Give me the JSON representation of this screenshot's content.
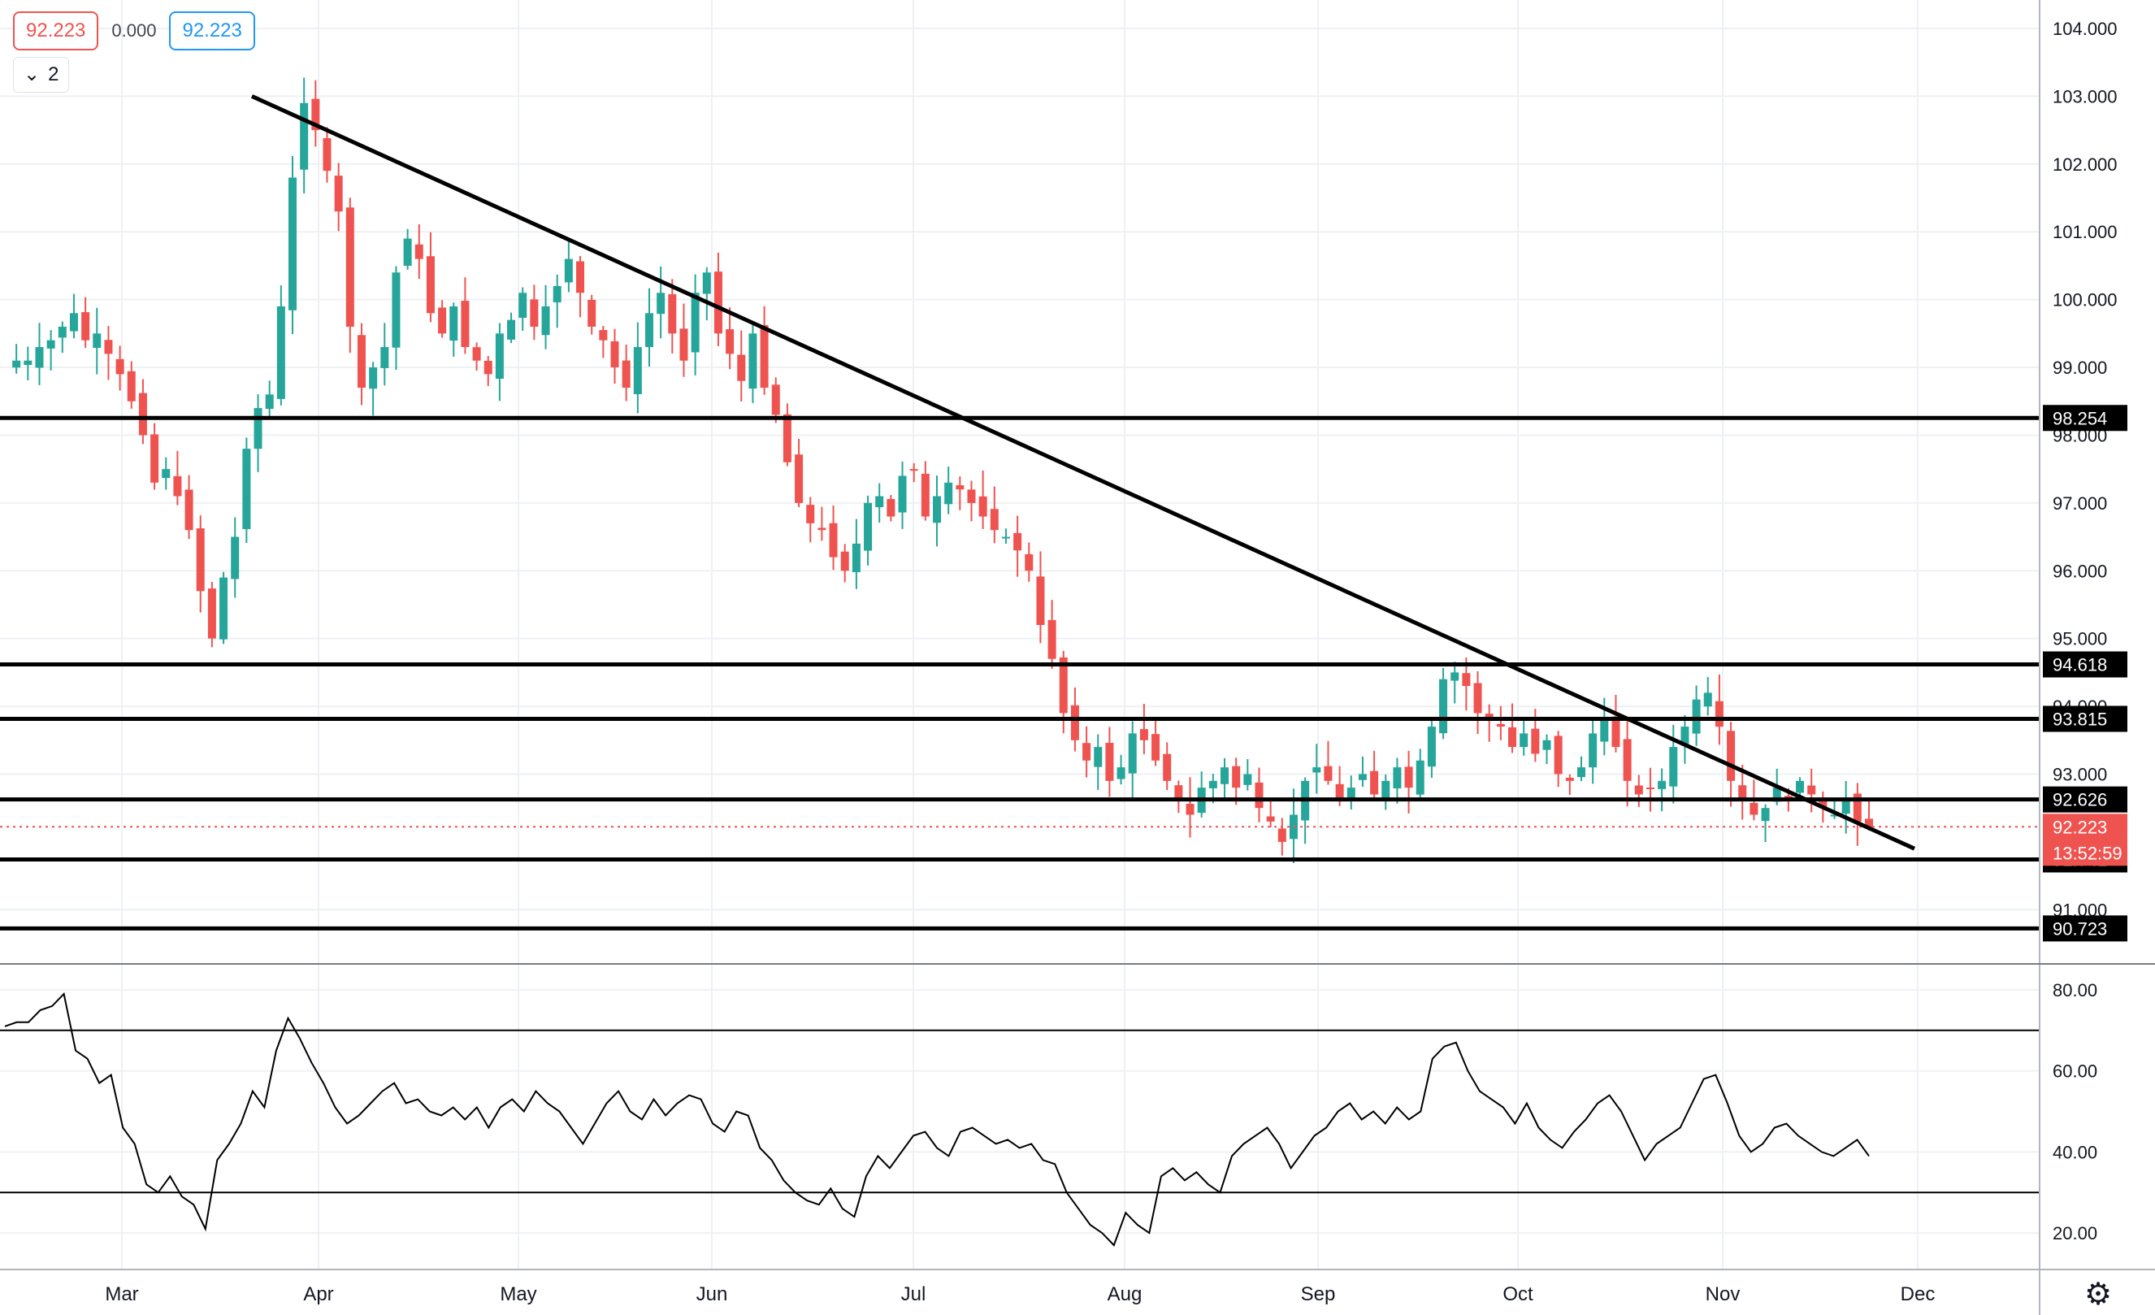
{
  "hud": {
    "open": "92.223",
    "change": "0.000",
    "close": "92.223",
    "collapse_count": "2",
    "collapse_icon": "chevron-down-icon"
  },
  "colors": {
    "up": "#26a69a",
    "down": "#ef5350",
    "line": "#000000",
    "grid": "#eef0f3",
    "price_marker": "#ef5350"
  },
  "chart_data": [
    {
      "type": "candlestick",
      "title": "",
      "x_labels": [
        "Mar",
        "Apr",
        "May",
        "Jun",
        "Jul",
        "Aug",
        "Sep",
        "Oct",
        "Nov",
        "Dec"
      ],
      "y_ticks": [
        "91.000",
        "93.000",
        "94.000",
        "95.000",
        "96.000",
        "97.000",
        "98.000",
        "99.000",
        "100.000",
        "101.000",
        "102.000",
        "103.000",
        "104.000"
      ],
      "ylim": [
        90.2,
        104.3
      ],
      "grid": true,
      "close_path": [
        99.0,
        99.1,
        99.1,
        99.3,
        99.4,
        99.6,
        99.8,
        99.4,
        99.5,
        99.2,
        98.9,
        98.5,
        98.0,
        97.3,
        97.5,
        97.1,
        96.6,
        95.7,
        95.0,
        95.9,
        96.5,
        97.8,
        98.4,
        98.6,
        99.9,
        101.8,
        102.9,
        102.5,
        101.9,
        101.3,
        99.6,
        98.7,
        99.0,
        99.3,
        100.4,
        100.9,
        100.6,
        99.8,
        99.5,
        99.9,
        99.3,
        99.1,
        98.9,
        99.5,
        99.7,
        100.1,
        99.6,
        99.9,
        100.2,
        100.6,
        100.1,
        99.6,
        99.4,
        99.0,
        98.7,
        99.3,
        99.8,
        100.1,
        99.5,
        99.1,
        100.1,
        100.4,
        99.5,
        99.2,
        98.8,
        99.5,
        98.7,
        98.3,
        97.6,
        97.0,
        96.7,
        96.6,
        96.2,
        96.0,
        96.4,
        97.0,
        97.1,
        96.8,
        97.4,
        97.5,
        96.8,
        97.1,
        97.3,
        97.2,
        97.0,
        96.8,
        96.6,
        96.5,
        96.3,
        96.0,
        95.2,
        94.7,
        93.9,
        93.5,
        93.2,
        93.4,
        92.9,
        93.1,
        93.6,
        93.5,
        93.2,
        92.9,
        92.6,
        92.4,
        92.8,
        92.9,
        93.1,
        92.8,
        93.0,
        92.5,
        92.3,
        92.0,
        92.4,
        92.9,
        93.1,
        92.9,
        92.6,
        92.8,
        93.0,
        92.7,
        92.9,
        93.1,
        92.8,
        93.2,
        93.7,
        94.4,
        94.5,
        94.3,
        93.9,
        93.8,
        93.7,
        93.4,
        93.6,
        93.3,
        93.5,
        93.0,
        92.9,
        93.1,
        93.6,
        93.8,
        93.4,
        92.9,
        92.7,
        92.8,
        92.9,
        93.4,
        93.7,
        94.1,
        94.2,
        93.7,
        92.9,
        92.6,
        92.4,
        92.5,
        92.8,
        92.6,
        92.9,
        92.7,
        92.5,
        92.4,
        92.6,
        92.3,
        92.223
      ],
      "horizontal_levels": [
        "98.254",
        "94.618",
        "93.815",
        "92.626",
        "91.741",
        "90.723"
      ],
      "last_price": "92.223",
      "countdown": "13:52:59",
      "trendline": {
        "from": {
          "x": "Mar 20",
          "y": 103.0
        },
        "to": {
          "x": "Nov 22",
          "y": 91.9
        }
      }
    },
    {
      "type": "line",
      "title": "",
      "y_ticks": [
        "20.00",
        "40.00",
        "60.00",
        "80.00"
      ],
      "ylim": [
        11,
        86
      ],
      "bands": [
        30,
        70
      ],
      "values": [
        71,
        72,
        72,
        75,
        76,
        79,
        65,
        63,
        57,
        59,
        46,
        42,
        32,
        30,
        34,
        29,
        27,
        21,
        38,
        42,
        47,
        55,
        51,
        65,
        73,
        68,
        62,
        57,
        51,
        47,
        49,
        52,
        55,
        57,
        52,
        53,
        50,
        49,
        51,
        48,
        51,
        46,
        51,
        53,
        50,
        55,
        52,
        50,
        46,
        42,
        47,
        52,
        55,
        50,
        48,
        53,
        49,
        52,
        54,
        53,
        47,
        45,
        50,
        49,
        41,
        38,
        33,
        30,
        28,
        27,
        31,
        26,
        24,
        34,
        39,
        36,
        40,
        44,
        45,
        41,
        39,
        45,
        46,
        44,
        42,
        43,
        41,
        42,
        38,
        37,
        30,
        26,
        22,
        20,
        17,
        25,
        22,
        20,
        34,
        36,
        33,
        35,
        32,
        30,
        39,
        42,
        44,
        46,
        42,
        36,
        40,
        44,
        46,
        50,
        52,
        48,
        50,
        47,
        51,
        48,
        50,
        63,
        66,
        67,
        60,
        55,
        53,
        51,
        47,
        52,
        46,
        43,
        41,
        45,
        48,
        52,
        54,
        50,
        44,
        38,
        42,
        44,
        46,
        52,
        58,
        59,
        52,
        44,
        40,
        42,
        46,
        47,
        44,
        42,
        40,
        39,
        41,
        43,
        39
      ],
      "x_labels": [
        "Mar",
        "Apr",
        "May",
        "Jun",
        "Jul",
        "Aug",
        "Sep",
        "Oct",
        "Nov",
        "Dec"
      ]
    }
  ]
}
